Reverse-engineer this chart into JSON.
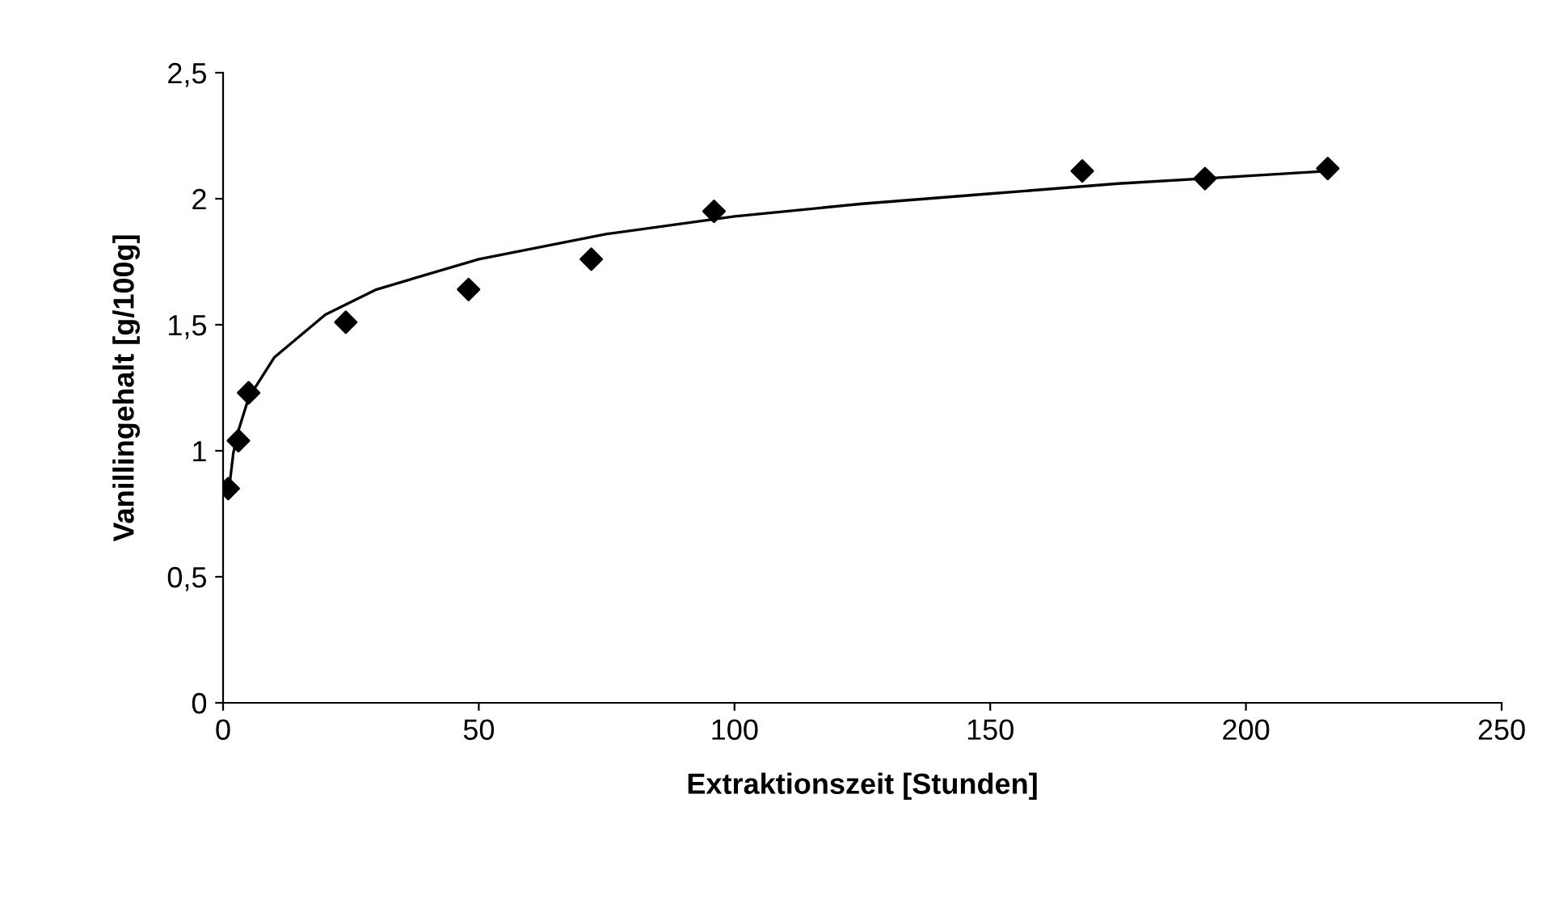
{
  "chart_data": {
    "type": "scatter",
    "xlabel": "Extraktionszeit [Stunden]",
    "ylabel": "Vanillingehalt [g/100g]",
    "xlim": [
      0,
      250
    ],
    "xticks": [
      0,
      50,
      100,
      150,
      200,
      250
    ],
    "ylim": [
      0,
      2.5
    ],
    "yticks": [
      {
        "value": 0,
        "label": "0"
      },
      {
        "value": 0.5,
        "label": "0,5"
      },
      {
        "value": 1,
        "label": "1"
      },
      {
        "value": 1.5,
        "label": "1,5"
      },
      {
        "value": 2,
        "label": "2"
      },
      {
        "value": 2.5,
        "label": "2,5"
      }
    ],
    "grid": false,
    "legend": false,
    "marker": "diamond",
    "series": [
      {
        "color": "#000000",
        "x": [
          1,
          3,
          5,
          24,
          48,
          72,
          96,
          168,
          192,
          216
        ],
        "values": [
          0.85,
          1.04,
          1.23,
          1.51,
          1.64,
          1.76,
          1.95,
          2.11,
          2.08,
          2.12
        ]
      },
      {
        "type": "line",
        "color": "#000000",
        "marker": "none",
        "line_style": "solid",
        "x": [
          1,
          2,
          3,
          5,
          10,
          20,
          30,
          50,
          75,
          100,
          125,
          150,
          175,
          200,
          216
        ],
        "values": [
          0.82,
          0.99,
          1.08,
          1.21,
          1.37,
          1.54,
          1.64,
          1.76,
          1.86,
          1.93,
          1.98,
          2.02,
          2.06,
          2.09,
          2.11
        ]
      }
    ]
  }
}
